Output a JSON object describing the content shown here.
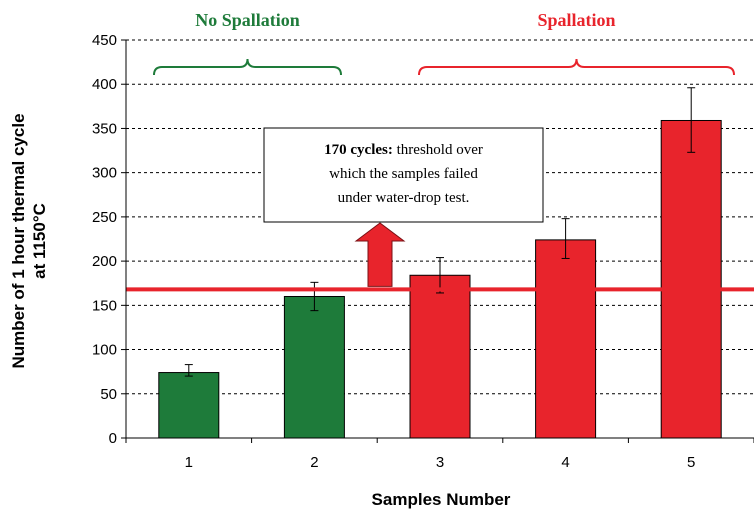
{
  "chart_data": {
    "type": "bar",
    "categories": [
      "1",
      "2",
      "3",
      "4",
      "5"
    ],
    "values": [
      74,
      160,
      184,
      224,
      359
    ],
    "errors": [
      {
        "low": 70,
        "high": 83
      },
      {
        "low": 144,
        "high": 176
      },
      {
        "low": 164,
        "high": 204
      },
      {
        "low": 203,
        "high": 248
      },
      {
        "low": 323,
        "high": 396
      }
    ],
    "bar_colors": [
      "#1e7b3a",
      "#1e7b3a",
      "#e8242c",
      "#e8242c",
      "#e8242c"
    ],
    "title": "",
    "xlabel": "Samples Number",
    "ylabel_line1": "Number of 1 hour thermal cycle",
    "ylabel_line2": "at 1150°C",
    "ylim": [
      0,
      450
    ],
    "yticks": [
      0,
      50,
      100,
      150,
      200,
      250,
      300,
      350,
      400,
      450
    ],
    "grid": true,
    "threshold": {
      "value": 168,
      "color": "#e8242c"
    },
    "groups": [
      {
        "label": "No Spallation",
        "color": "#1e7b3a",
        "from": 1,
        "to": 2
      },
      {
        "label": "Spallation",
        "color": "#e8242c",
        "from": 3,
        "to": 5
      }
    ],
    "annotation": {
      "bold": "170 cycles:",
      "line1_rest": " threshold over",
      "line2": "which the samples failed",
      "line3": "under water-drop test."
    }
  }
}
